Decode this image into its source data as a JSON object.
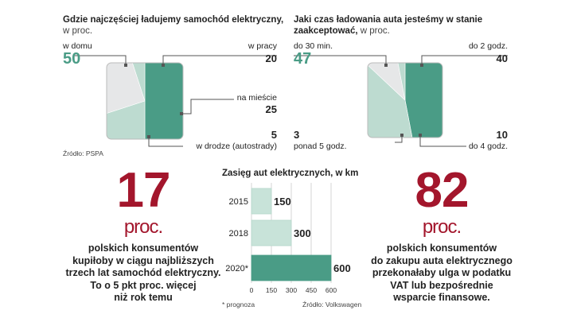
{
  "colors": {
    "dark": "#4a9c86",
    "mid": "#bddbd0",
    "light": "#e6e7e8",
    "accent": "#a3162c",
    "bar": "#c8e3d9",
    "bar_dark": "#4a9c86",
    "leader": "#555555"
  },
  "chart_data": [
    {
      "type": "pie",
      "title": "Gdzie najczęściej ładujemy samochód elektryczny,",
      "subtitle": "w proc.",
      "slices": [
        {
          "label": "w domu",
          "value": 50
        },
        {
          "label": "w pracy",
          "value": 20
        },
        {
          "label": "na mieście",
          "value": 25
        },
        {
          "label": "w drodze (autostrady)",
          "value": 5
        }
      ],
      "source": "Źródło: PSPA"
    },
    {
      "type": "pie",
      "title_line1": "Jaki czas ładowania auta jesteśmy w stanie",
      "title_line2": "zaakceptować,",
      "subtitle": "w proc.",
      "slices": [
        {
          "label": "do 30 min.",
          "value": 47
        },
        {
          "label": "do 2 godz.",
          "value": 40
        },
        {
          "label": "do 4 godz.",
          "value": 10
        },
        {
          "label": "ponad 5 godz.",
          "value": 3
        }
      ]
    },
    {
      "type": "bar",
      "orientation": "horizontal",
      "title": "Zasięg aut elektrycznych, w km",
      "categories": [
        "2015",
        "2018",
        "2020*"
      ],
      "values": [
        150,
        300,
        600
      ],
      "xlim": [
        0,
        600
      ],
      "xticks": [
        "0",
        "150",
        "300",
        "450",
        "600"
      ],
      "grid": true,
      "note": "* prognoza",
      "source": "Źródło: Volkswagen"
    }
  ],
  "stat_left": {
    "number": "17",
    "unit": "proc.",
    "lines": [
      "polskich konsumentów",
      "kupiłoby w ciągu najbliższych",
      "trzech lat samochód elektryczny.",
      "To o 5 pkt proc. więcej",
      "niż rok temu"
    ]
  },
  "stat_right": {
    "number": "82",
    "unit": "proc.",
    "lines": [
      "polskich konsumentów",
      "do zakupu auta elektrycznego",
      "przekonałaby ulga w podatku",
      "VAT lub bezpośrednie",
      "wsparcie finansowe."
    ]
  }
}
